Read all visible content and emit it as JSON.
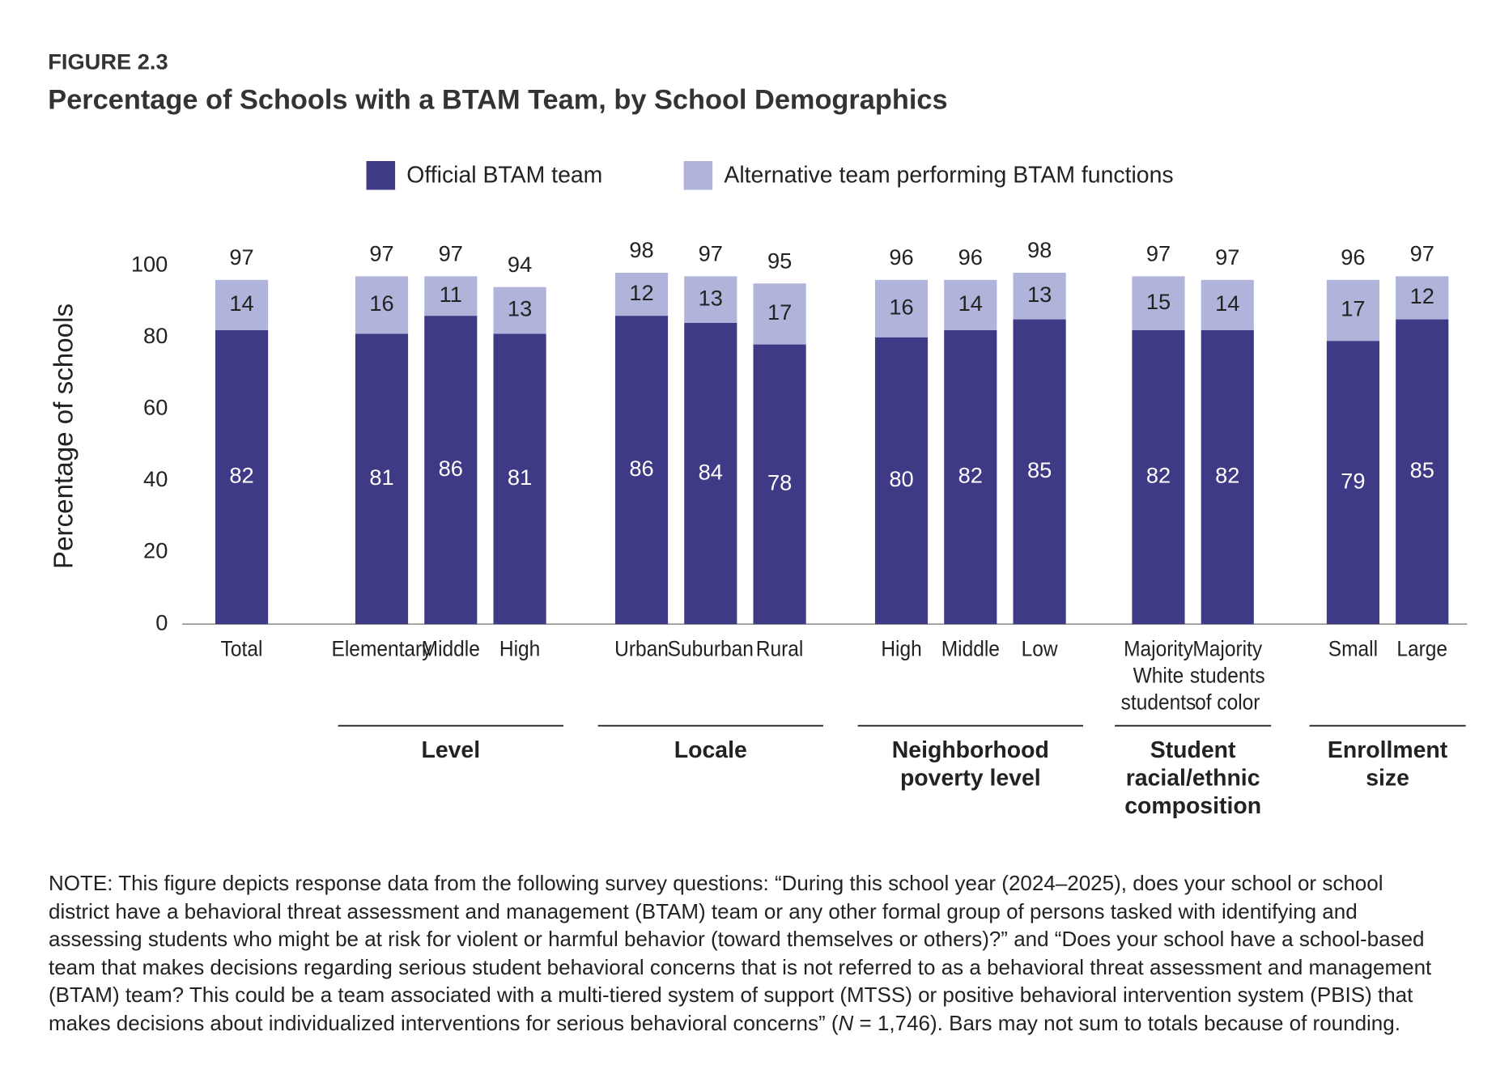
{
  "chart_data": {
    "type": "stacked-bar",
    "figure_label": "FIGURE 2.3",
    "title": "Percentage of Schools with a BTAM Team, by School Demographics",
    "y_label": "Percentage of schools",
    "groups": [
      {
        "categories": [
          "Total"
        ]
      },
      {
        "label": [
          "Level"
        ],
        "categories": [
          "Elementary",
          "Middle",
          "High"
        ]
      },
      {
        "label": [
          "Locale"
        ],
        "categories": [
          "Urban",
          "Suburban",
          "Rural"
        ]
      },
      {
        "label": [
          "Neighborhood",
          "poverty level"
        ],
        "categories": [
          "High",
          "Middle",
          "Low"
        ]
      },
      {
        "label": [
          "Student",
          "racial/ethnic",
          "composition"
        ],
        "categories": [
          [
            "Majority",
            "White",
            "students"
          ],
          [
            "Majority",
            "students",
            "of color"
          ]
        ]
      },
      {
        "label": [
          "Enrollment",
          "size"
        ],
        "categories": [
          "Small",
          "Large"
        ]
      }
    ],
    "series": [
      {
        "name": "Official BTAM team",
        "color": "#3e3a86",
        "values": [
          82,
          81,
          86,
          81,
          86,
          84,
          78,
          80,
          82,
          85,
          82,
          82,
          79,
          85
        ]
      },
      {
        "name": "Alternative team performing BTAM functions",
        "color": "#b0b3da",
        "values": [
          14,
          16,
          11,
          13,
          12,
          13,
          17,
          16,
          14,
          13,
          15,
          14,
          17,
          12
        ]
      }
    ],
    "totals": [
      97,
      97,
      97,
      94,
      98,
      97,
      95,
      96,
      96,
      98,
      97,
      97,
      96,
      97
    ],
    "ylim": [
      0,
      100
    ],
    "yticks": [
      0,
      20,
      40,
      60,
      80,
      100
    ],
    "note": [
      "NOTE: This figure depicts response data from the following survey questions: “During this school year (2024–2025), does your school or school district have a behavioral threat assessment and management (BTAM) team or any other formal group of persons tasked with identifying and assessing students who might be at risk for violent or harmful behavior (toward themselves or others)?” and “Does your school have a school-based team that makes decisions regarding serious student behavioral concerns that is not referred to as a behavioral threat assessment and management (BTAM) team? This could be a team associated with a multi-tiered system of support (MTSS) or positive behavioral intervention system (PBIS) that makes decisions about individualized interventions for serious behavioral concerns” (",
      "N",
      " = 1,746). Bars may not sum to totals because of rounding."
    ]
  }
}
